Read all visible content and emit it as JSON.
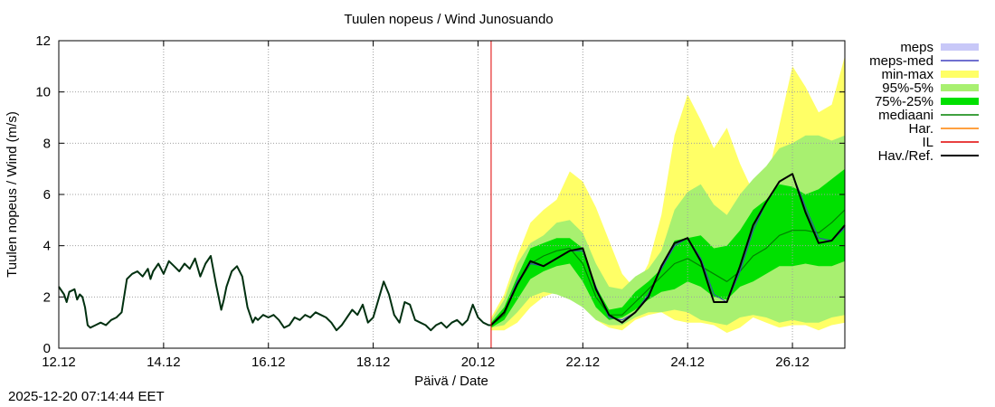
{
  "chart_data": {
    "type": "line",
    "title": "Tuulen nopeus / Wind  Junosuando",
    "xlabel": "Päivä / Date",
    "ylabel": "Tuulen nopeus / Wind (m/s)",
    "xlim": [
      0,
      15
    ],
    "ylim": [
      0,
      12
    ],
    "grid": true,
    "x_ticks": [
      {
        "x": 0,
        "label": "12.12"
      },
      {
        "x": 2,
        "label": "14.12"
      },
      {
        "x": 4,
        "label": "16.12"
      },
      {
        "x": 6,
        "label": "18.12"
      },
      {
        "x": 8,
        "label": "20.12"
      },
      {
        "x": 10,
        "label": "22.12"
      },
      {
        "x": 12,
        "label": "24.12"
      },
      {
        "x": 14,
        "label": "26.12"
      }
    ],
    "y_ticks": [
      0,
      2,
      4,
      6,
      8,
      10,
      12
    ],
    "il_x": 8.25,
    "legend_position": "right",
    "legend": [
      {
        "label": "meps",
        "kind": "band",
        "color": "#c8c8f8"
      },
      {
        "label": "meps-med",
        "kind": "line",
        "color": "#4040c0"
      },
      {
        "label": "min-max",
        "kind": "band",
        "color": "#ffff66"
      },
      {
        "label": "95%-5%",
        "kind": "band",
        "color": "#a8f070"
      },
      {
        "label": "75%-25%",
        "kind": "band",
        "color": "#00e000"
      },
      {
        "label": "mediaani",
        "kind": "line",
        "color": "#008000"
      },
      {
        "label": "Har.",
        "kind": "line",
        "color": "#ff8000"
      },
      {
        "label": "IL",
        "kind": "line",
        "color": "#e00000"
      },
      {
        "label": "Hav./Ref.",
        "kind": "line",
        "color": "#000000"
      }
    ],
    "forecast_x": [
      8.25,
      8.5,
      8.75,
      9.0,
      9.25,
      9.5,
      9.75,
      10.0,
      10.25,
      10.5,
      10.75,
      11.0,
      11.25,
      11.5,
      11.75,
      12.0,
      12.25,
      12.5,
      12.75,
      13.0,
      13.25,
      13.5,
      13.75,
      14.0,
      14.25,
      14.5,
      14.75,
      15.0
    ],
    "series": [
      {
        "name": "min-max upper",
        "values": [
          1.2,
          2.1,
          3.6,
          4.9,
          5.4,
          5.8,
          6.9,
          6.5,
          5.5,
          4.2,
          2.9,
          2.3,
          3.3,
          5.2,
          8.3,
          9.9,
          8.9,
          7.8,
          8.6,
          7.2,
          6.1,
          6.4,
          8.7,
          11.0,
          10.2,
          9.2,
          9.5,
          11.4
        ]
      },
      {
        "name": "min-max lower",
        "values": [
          0.7,
          0.7,
          1.0,
          1.6,
          2.0,
          2.2,
          2.2,
          1.8,
          1.1,
          0.8,
          0.7,
          1.1,
          1.3,
          1.4,
          1.1,
          1.0,
          1.0,
          0.9,
          0.6,
          0.8,
          1.2,
          1.0,
          0.8,
          0.9,
          0.9,
          0.7,
          0.9,
          1.0
        ]
      },
      {
        "name": "95%-5% upper",
        "values": [
          1.1,
          1.9,
          3.3,
          4.1,
          4.4,
          4.9,
          5.0,
          4.5,
          3.3,
          2.4,
          2.3,
          2.8,
          3.1,
          3.8,
          5.4,
          6.1,
          6.4,
          5.6,
          5.2,
          6.0,
          6.6,
          7.1,
          7.8,
          8.0,
          8.3,
          8.3,
          8.1,
          8.3
        ]
      },
      {
        "name": "95%-5% lower",
        "values": [
          0.8,
          0.9,
          1.4,
          2.0,
          2.2,
          2.1,
          1.9,
          1.6,
          1.1,
          0.9,
          0.9,
          1.2,
          1.4,
          1.4,
          1.5,
          1.4,
          1.1,
          1.0,
          0.9,
          1.2,
          1.3,
          1.2,
          1.0,
          1.1,
          1.0,
          1.0,
          1.2,
          1.3
        ]
      },
      {
        "name": "75%-25% upper",
        "values": [
          1.0,
          1.6,
          2.8,
          3.9,
          4.1,
          4.3,
          4.3,
          3.9,
          2.4,
          1.5,
          1.6,
          2.2,
          2.6,
          3.1,
          4.2,
          4.3,
          4.4,
          3.9,
          4.0,
          4.6,
          5.4,
          5.8,
          6.4,
          6.3,
          6.0,
          6.2,
          6.6,
          7.0
        ]
      },
      {
        "name": "75%-25% lower",
        "values": [
          0.8,
          1.1,
          1.9,
          2.7,
          3.0,
          3.2,
          3.3,
          2.6,
          1.6,
          1.1,
          1.2,
          1.5,
          1.9,
          2.2,
          2.3,
          2.6,
          2.4,
          2.0,
          1.9,
          2.4,
          2.6,
          2.9,
          3.2,
          3.2,
          3.3,
          3.2,
          3.2,
          3.4
        ]
      },
      {
        "name": "mediaani",
        "values": [
          0.9,
          1.3,
          2.5,
          3.3,
          3.6,
          3.8,
          3.9,
          3.3,
          2.0,
          1.3,
          1.3,
          1.8,
          2.3,
          2.8,
          3.3,
          3.5,
          3.2,
          2.9,
          2.6,
          3.0,
          3.6,
          3.9,
          4.4,
          4.6,
          4.6,
          4.5,
          4.9,
          5.4
        ]
      },
      {
        "name": "meps-med",
        "values": [
          0.9,
          1.4,
          2.6,
          3.3,
          3.2,
          3.5,
          3.8,
          3.8,
          2.4,
          1.2,
          1.1,
          1.4,
          2.1,
          3.1,
          4.0,
          4.3,
          3.5,
          2.1,
          1.8,
          3.0,
          4.6,
          5.7,
          6.5,
          6.8,
          5.5,
          4.3,
          4.2,
          4.7
        ]
      },
      {
        "name": "Hav./Ref.",
        "x": [
          0.0,
          0.1,
          0.15,
          0.2,
          0.3,
          0.35,
          0.4,
          0.45,
          0.5,
          0.55,
          0.6,
          0.7,
          0.8,
          0.9,
          1.0,
          1.1,
          1.2,
          1.3,
          1.4,
          1.5,
          1.6,
          1.7,
          1.75,
          1.8,
          1.9,
          2.0,
          2.1,
          2.2,
          2.3,
          2.4,
          2.5,
          2.6,
          2.7,
          2.8,
          2.9,
          3.0,
          3.1,
          3.15,
          3.2,
          3.3,
          3.4,
          3.5,
          3.6,
          3.7,
          3.75,
          3.8,
          3.9,
          4.0,
          4.1,
          4.2,
          4.3,
          4.4,
          4.5,
          4.6,
          4.7,
          4.8,
          4.9,
          5.0,
          5.1,
          5.2,
          5.3,
          5.4,
          5.5,
          5.6,
          5.7,
          5.8,
          5.9,
          6.0,
          6.1,
          6.2,
          6.3,
          6.4,
          6.5,
          6.6,
          6.7,
          6.8,
          6.9,
          7.0,
          7.1,
          7.2,
          7.3,
          7.4,
          7.5,
          7.6,
          7.7,
          7.8,
          7.9,
          8.0,
          8.1,
          8.2,
          8.25
        ],
        "values": [
          2.4,
          2.1,
          1.8,
          2.2,
          2.3,
          1.9,
          2.1,
          2.0,
          1.6,
          0.9,
          0.8,
          0.9,
          1.0,
          0.9,
          1.1,
          1.2,
          1.4,
          2.7,
          2.9,
          3.0,
          2.8,
          3.1,
          2.7,
          3.0,
          3.3,
          2.9,
          3.4,
          3.2,
          3.0,
          3.3,
          3.1,
          3.5,
          2.8,
          3.3,
          3.6,
          2.5,
          1.5,
          1.9,
          2.4,
          3.0,
          3.2,
          2.8,
          1.6,
          1.0,
          1.2,
          1.1,
          1.3,
          1.2,
          1.3,
          1.1,
          0.8,
          0.9,
          1.2,
          1.1,
          1.3,
          1.2,
          1.4,
          1.3,
          1.2,
          1.0,
          0.7,
          0.9,
          1.2,
          1.5,
          1.3,
          1.7,
          1.0,
          1.2,
          1.9,
          2.6,
          2.1,
          1.3,
          1.0,
          1.8,
          1.7,
          1.1,
          1.0,
          0.9,
          0.7,
          0.9,
          1.0,
          0.8,
          1.0,
          1.1,
          0.9,
          1.1,
          1.7,
          1.2,
          1.0,
          0.9,
          0.9
        ]
      },
      {
        "name": "Hav. forecast",
        "x": [
          8.25,
          8.5,
          8.75,
          9.0,
          9.25,
          9.5,
          9.75,
          10.0,
          10.25,
          10.5,
          10.75,
          11.0,
          11.25,
          11.5,
          11.75,
          12.0,
          12.25,
          12.5,
          12.75,
          13.0,
          13.25,
          13.5,
          13.75,
          14.0,
          14.25,
          14.5,
          14.75,
          15.0
        ],
        "values": [
          0.9,
          1.4,
          2.5,
          3.4,
          3.2,
          3.5,
          3.8,
          3.9,
          2.3,
          1.3,
          1.0,
          1.4,
          2.0,
          3.2,
          4.1,
          4.3,
          3.4,
          1.8,
          1.8,
          3.2,
          4.8,
          5.7,
          6.5,
          6.8,
          5.3,
          4.1,
          4.2,
          4.8
        ]
      }
    ]
  },
  "footer": {
    "timestamp": "2025-12-20 07:14:44 EET"
  }
}
